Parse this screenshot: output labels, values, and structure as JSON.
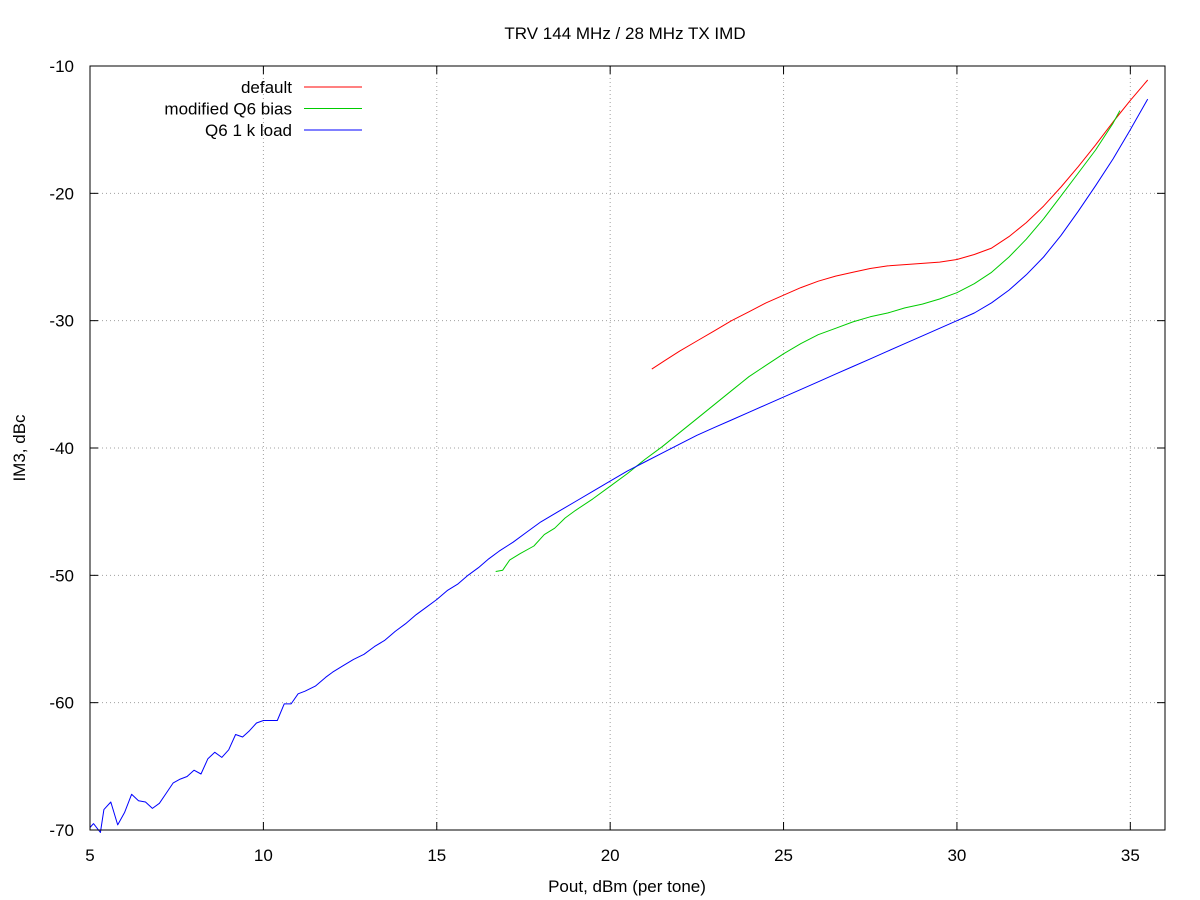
{
  "chart_data": {
    "type": "line",
    "title": "TRV 144 MHz / 28 MHz TX IMD",
    "xlabel": "Pout, dBm (per tone)",
    "ylabel": "IM3, dBc",
    "xlim": [
      5,
      36
    ],
    "ylim": [
      -70,
      -10
    ],
    "xticks": [
      5,
      10,
      15,
      20,
      25,
      30,
      35
    ],
    "yticks": [
      -70,
      -60,
      -50,
      -40,
      -30,
      -20,
      -10
    ],
    "grid": true,
    "legend_position": "top-left",
    "series": [
      {
        "name": "default",
        "color": "#ff0000",
        "x": [
          21.2,
          21.6,
          22.0,
          22.5,
          23.0,
          23.5,
          24.0,
          24.5,
          25.0,
          25.5,
          26.0,
          26.5,
          27.0,
          27.5,
          28.0,
          28.5,
          29.0,
          29.5,
          30.0,
          30.5,
          31.0,
          31.5,
          32.0,
          32.5,
          33.0,
          33.5,
          34.0,
          34.5,
          35.0,
          35.5
        ],
        "y": [
          -33.8,
          -33.1,
          -32.4,
          -31.6,
          -30.8,
          -30.0,
          -29.3,
          -28.6,
          -28.0,
          -27.4,
          -26.9,
          -26.5,
          -26.2,
          -25.9,
          -25.7,
          -25.6,
          -25.5,
          -25.4,
          -25.2,
          -24.8,
          -24.3,
          -23.4,
          -22.3,
          -21.0,
          -19.5,
          -17.9,
          -16.2,
          -14.4,
          -12.7,
          -11.1
        ]
      },
      {
        "name": "modified Q6 bias",
        "color": "#00cc00",
        "x": [
          16.7,
          16.9,
          17.1,
          17.4,
          17.8,
          18.1,
          18.4,
          18.7,
          19.0,
          19.5,
          20.0,
          20.5,
          21.0,
          21.5,
          22.0,
          22.5,
          23.0,
          23.5,
          24.0,
          24.5,
          25.0,
          25.5,
          26.0,
          26.5,
          27.0,
          27.5,
          28.0,
          28.5,
          29.0,
          29.5,
          30.0,
          30.5,
          31.0,
          31.5,
          32.0,
          32.5,
          33.0,
          33.5,
          34.0,
          34.5,
          34.7
        ],
        "y": [
          -49.7,
          -49.6,
          -48.8,
          -48.3,
          -47.7,
          -46.8,
          -46.3,
          -45.5,
          -44.9,
          -44.0,
          -43.0,
          -42.0,
          -40.9,
          -39.9,
          -38.8,
          -37.7,
          -36.6,
          -35.5,
          -34.4,
          -33.5,
          -32.6,
          -31.8,
          -31.1,
          -30.6,
          -30.1,
          -29.7,
          -29.4,
          -29.0,
          -28.7,
          -28.3,
          -27.8,
          -27.1,
          -26.2,
          -25.0,
          -23.6,
          -22.0,
          -20.2,
          -18.4,
          -16.6,
          -14.5,
          -13.5
        ]
      },
      {
        "name": "Q6 1 k load",
        "color": "#0000ff",
        "x": [
          5.0,
          5.1,
          5.3,
          5.4,
          5.6,
          5.8,
          6.0,
          6.2,
          6.4,
          6.6,
          6.8,
          7.0,
          7.2,
          7.4,
          7.6,
          7.8,
          8.0,
          8.2,
          8.4,
          8.6,
          8.8,
          9.0,
          9.2,
          9.4,
          9.6,
          9.8,
          10.0,
          10.2,
          10.4,
          10.6,
          10.8,
          11.0,
          11.2,
          11.5,
          11.8,
          12.0,
          12.3,
          12.6,
          12.9,
          13.2,
          13.5,
          13.8,
          14.1,
          14.4,
          14.7,
          15.0,
          15.3,
          15.6,
          15.9,
          16.2,
          16.5,
          16.8,
          17.2,
          17.6,
          18.0,
          18.5,
          19.0,
          19.5,
          20.0,
          20.5,
          21.0,
          21.5,
          22.0,
          22.5,
          23.0,
          23.5,
          24.0,
          24.5,
          25.0,
          25.5,
          26.0,
          26.5,
          27.0,
          27.5,
          28.0,
          28.5,
          29.0,
          29.5,
          30.0,
          30.5,
          31.0,
          31.5,
          32.0,
          32.5,
          33.0,
          33.5,
          34.0,
          34.5,
          35.0,
          35.5
        ],
        "y": [
          -69.8,
          -69.5,
          -70.2,
          -68.4,
          -67.8,
          -69.6,
          -68.6,
          -67.2,
          -67.7,
          -67.8,
          -68.3,
          -67.9,
          -67.1,
          -66.3,
          -66.0,
          -65.8,
          -65.3,
          -65.6,
          -64.4,
          -63.9,
          -64.3,
          -63.7,
          -62.5,
          -62.7,
          -62.2,
          -61.6,
          -61.4,
          -61.4,
          -61.4,
          -60.1,
          -60.1,
          -59.3,
          -59.1,
          -58.7,
          -58.0,
          -57.6,
          -57.1,
          -56.6,
          -56.2,
          -55.6,
          -55.1,
          -54.4,
          -53.8,
          -53.1,
          -52.5,
          -51.9,
          -51.2,
          -50.7,
          -50.0,
          -49.4,
          -48.7,
          -48.1,
          -47.4,
          -46.6,
          -45.8,
          -45.0,
          -44.2,
          -43.4,
          -42.6,
          -41.8,
          -41.1,
          -40.4,
          -39.7,
          -39.0,
          -38.4,
          -37.8,
          -37.2,
          -36.6,
          -36.0,
          -35.4,
          -34.8,
          -34.2,
          -33.6,
          -33.0,
          -32.4,
          -31.8,
          -31.2,
          -30.6,
          -30.0,
          -29.4,
          -28.6,
          -27.6,
          -26.4,
          -25.0,
          -23.3,
          -21.4,
          -19.4,
          -17.3,
          -15.0,
          -12.6
        ]
      }
    ]
  }
}
